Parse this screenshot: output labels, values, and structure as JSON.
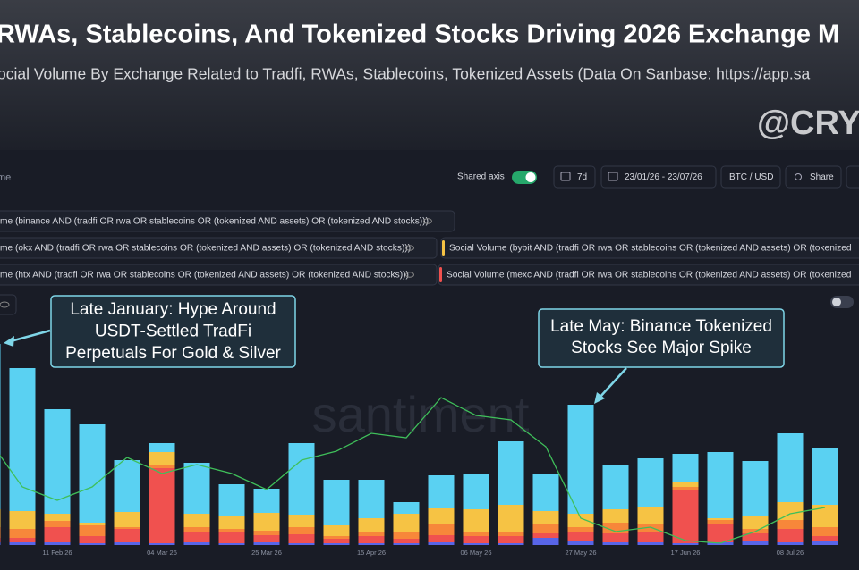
{
  "header": {
    "title": "RWAs, Stablecoins, And Tokenized Stocks Driving 2026 Exchange M",
    "subtitle": "ocial Volume By Exchange Related to Tradfi, RWAs, Stablecoins, Tokenized Assets (Data On Sanbase: https://app.sa",
    "handle": "@CRYPT"
  },
  "toolbar": {
    "metric": "me",
    "shared_axis": "Shared axis",
    "interval": "7d",
    "range": "23/01/26 - 23/07/26",
    "currency": "BTC / USD",
    "share": "Share"
  },
  "chart_data": {
    "type": "bar",
    "stacked": true,
    "watermark": "santiment",
    "categories": [
      null,
      null,
      "11 Feb 26",
      null,
      null,
      "04 Mar 26",
      null,
      null,
      "25 Mar 26",
      null,
      null,
      "15 Apr 26",
      null,
      null,
      "06 May 26",
      null,
      null,
      "27 May 26",
      null,
      null,
      "17 Jun 26",
      null,
      null,
      "08 Jul 26",
      null
    ],
    "ylim": [
      0,
      240
    ],
    "series": [
      {
        "name": "me (htx AND (tradfi OR rwa OR stablecoins OR (tokenized AND assets) OR (tokenized AND stocks)))",
        "color": "#5865e8",
        "values": [
          3,
          3,
          3,
          2,
          3,
          2,
          3,
          2,
          3,
          2,
          2,
          2,
          2,
          3,
          2,
          2,
          8,
          5,
          3,
          3,
          2,
          3,
          5,
          3,
          5
        ]
      },
      {
        "name": "Social Volume (mexc AND (tradfi OR rwa OR stablecoins OR (tokenized AND assets) OR (tokenized",
        "color": "#f0514f",
        "values": [
          5,
          5,
          17,
          8,
          15,
          84,
          12,
          12,
          8,
          10,
          5,
          8,
          5,
          8,
          8,
          8,
          5,
          10,
          10,
          12,
          60,
          20,
          8,
          15,
          5
        ]
      },
      {
        "name": "me (okx AND (tradfi OR rwa OR stablecoins OR (tokenized AND assets) OR (tokenized AND stocks)))",
        "color": "#f7873a",
        "values": [
          12,
          10,
          7,
          12,
          2,
          3,
          5,
          4,
          5,
          8,
          3,
          5,
          8,
          12,
          5,
          5,
          10,
          5,
          12,
          8,
          3,
          5,
          5,
          10,
          10
        ]
      },
      {
        "name": "Social Volume (bybit AND (tradfi OR rwa OR stablecoins OR (tokenized AND assets) OR (tokenized",
        "color": "#f6c344",
        "values": [
          20,
          20,
          8,
          3,
          17,
          15,
          15,
          14,
          20,
          14,
          12,
          15,
          20,
          18,
          25,
          30,
          15,
          15,
          15,
          20,
          6,
          2,
          14,
          20,
          25
        ]
      },
      {
        "name": "me (binance AND (tradfi OR rwa OR stablecoins OR (tokenized AND assets) OR (tokenized AND stocks)))",
        "color": "#5ad1f2",
        "values": [
          185,
          160,
          117,
          110,
          58,
          10,
          57,
          36,
          27,
          80,
          51,
          43,
          13,
          37,
          40,
          71,
          42,
          122,
          50,
          54,
          31,
          74,
          62,
          77,
          64
        ]
      },
      {
        "type": "line",
        "color": "#3fbf5a",
        "values": [
          120,
          65,
          50,
          65,
          98,
          80,
          90,
          80,
          62,
          95,
          105,
          125,
          120,
          165,
          145,
          140,
          110,
          30,
          15,
          20,
          5,
          2,
          15,
          35,
          42
        ]
      }
    ],
    "annotations": [
      {
        "lines": [
          "Late January: Hype Around",
          "USDT-Settled TradFi",
          "Perpetuals For Gold & Silver"
        ]
      },
      {
        "lines": [
          "Late May: Binance Tokenized",
          "Stocks See Major Spike"
        ]
      }
    ]
  }
}
